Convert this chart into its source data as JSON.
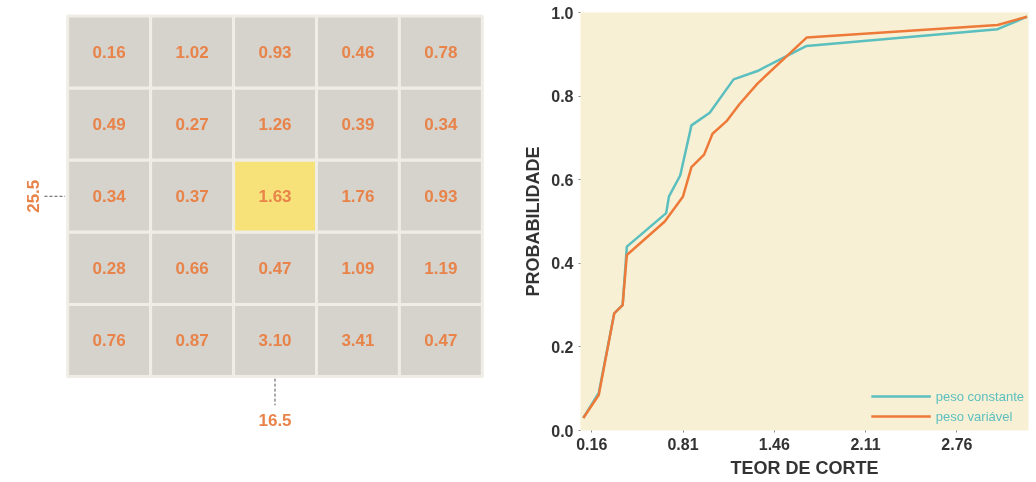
{
  "chart_data": [
    {
      "type": "heatmap",
      "categories": [
        null,
        null,
        null,
        null,
        null
      ],
      "y_categories": [
        null,
        null,
        null,
        null,
        null
      ],
      "cells": [
        [
          0.16,
          1.02,
          0.93,
          0.46,
          0.78
        ],
        [
          0.49,
          0.27,
          1.26,
          0.39,
          0.34
        ],
        [
          0.34,
          0.37,
          1.63,
          1.76,
          0.93
        ],
        [
          0.28,
          0.66,
          0.47,
          1.09,
          1.19
        ],
        [
          0.76,
          0.87,
          3.1,
          3.41,
          0.47
        ]
      ],
      "colors": [
        "#d6d3cc",
        "#d6d3cc",
        "#d6d3cc",
        "#d6d3cc",
        "#d6d3cc",
        "#d6d3cc",
        "#d6d3cc",
        "#d6d3cc",
        "#d6d3cc",
        "#d6d3cc",
        "#d6d3cc",
        "#d6d3cc",
        "#f7e27a",
        "#d6d3cc",
        "#d6d3cc",
        "#d6d3cc",
        "#d6d3cc",
        "#d6d3cc",
        "#d6d3cc",
        "#d6d3cc",
        "#d6d3cc",
        "#d6d3cc",
        "#d6d3cc",
        "#d6d3cc",
        "#d6d3cc"
      ],
      "cell_labels": [
        [
          "0.16",
          "1.02",
          "0.93",
          "0.46",
          "0.78"
        ],
        [
          "0.49",
          "0.27",
          "1.26",
          "0.39",
          "0.34"
        ],
        [
          "0.34",
          "0.37",
          "1.63",
          "1.76",
          "0.93"
        ],
        [
          "0.28",
          "0.66",
          "0.47",
          "1.09",
          "1.19"
        ],
        [
          "0.76",
          "0.87",
          "3.10",
          "3.41",
          "0.47"
        ]
      ],
      "annotations": [
        "25.5",
        "16.5"
      ]
    },
    {
      "type": "line",
      "xlabel": "TEOR DE CORTE",
      "ylabel": "PROBABILIDADE",
      "xlim": [
        0.08,
        3.27
      ],
      "ylim": [
        0,
        1
      ],
      "xticks": [
        0.16,
        0.81,
        1.46,
        2.11,
        2.76
      ],
      "yticks": [
        {
          "value": 0,
          "label": "0.0"
        },
        0.2,
        0.4,
        0.6,
        0.8,
        {
          "value": 1,
          "label": "1.0"
        }
      ],
      "grid": false,
      "legend": "bottom right",
      "line_style": "solid",
      "marker": "none",
      "series": [
        {
          "name": "peso constante",
          "color": "#5bbfbf",
          "x": [
            0.1,
            0.21,
            0.32,
            0.38,
            0.41,
            0.69,
            0.71,
            0.79,
            0.87,
            1.0,
            1.17,
            1.34,
            1.69,
            3.05,
            3.26
          ],
          "values": [
            0.03,
            0.09,
            0.28,
            0.3,
            0.44,
            0.52,
            0.56,
            0.61,
            0.73,
            0.76,
            0.84,
            0.86,
            0.92,
            0.96,
            0.99
          ]
        },
        {
          "name": "peso variável",
          "color": "#ee7a3a",
          "x": [
            0.1,
            0.21,
            0.32,
            0.38,
            0.41,
            0.68,
            0.81,
            0.87,
            0.96,
            1.02,
            1.12,
            1.21,
            1.34,
            1.69,
            3.05,
            3.26
          ],
          "values": [
            0.03,
            0.085,
            0.28,
            0.3,
            0.42,
            0.5,
            0.56,
            0.63,
            0.66,
            0.71,
            0.74,
            0.78,
            0.83,
            0.94,
            0.97,
            0.99
          ]
        }
      ]
    }
  ]
}
